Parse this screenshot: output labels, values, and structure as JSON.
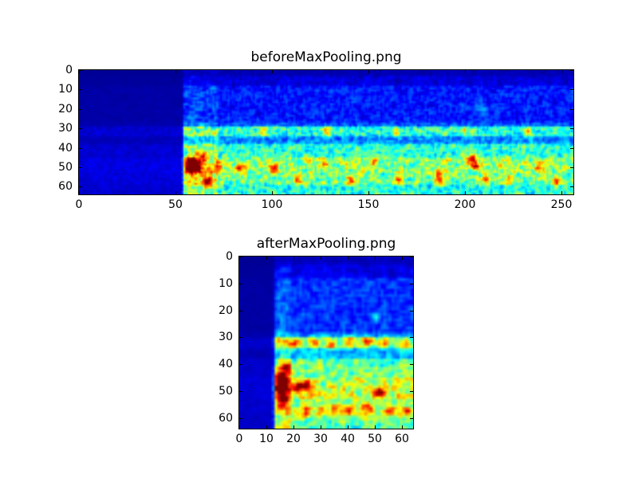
{
  "figure": {
    "background": "#ffffff",
    "kind": "matplotlib-style figure with two image subplots"
  },
  "colors": {
    "axes_frame": "#000000",
    "tick_color": "#000000",
    "text_color": "#000000",
    "colormap_low": "#000080",
    "colormap_mid": "#00ffff",
    "colormap_high": "#800000"
  },
  "chart_data": [
    {
      "type": "heatmap",
      "title": "beforeMaxPooling.png",
      "xlabel": "",
      "ylabel": "",
      "x_range": [
        0,
        256
      ],
      "y_range": [
        0,
        64
      ],
      "y_inverted": true,
      "x_ticks": [
        0,
        50,
        100,
        150,
        200,
        250
      ],
      "y_ticks": [
        0,
        10,
        20,
        30,
        40,
        50,
        60
      ],
      "colormap": "jet",
      "grid": false,
      "legend": "none",
      "data_cols": 256,
      "data_rows": 64,
      "seed": 20,
      "description": "Spectrogram-like activation map 256 wide by 64 tall. Columns 0-53 are near-silent dark navy. A speckled cyan-green band spans rows 29-33; strong activity rows 38-63 with hottest red-orange spots near columns 56-66 rows 44-52 and scattered orange specks along rows 45-58.",
      "silence": {
        "col_start": 0,
        "col_end": 54,
        "gain": 0.16
      },
      "col_boost": [
        {
          "col_start": 54,
          "col_end": 72,
          "gain": 1.25
        }
      ],
      "row_bands": [
        {
          "from": 0,
          "to": 3,
          "base": 0.05,
          "noise": 0.03
        },
        {
          "from": 3,
          "to": 8,
          "base": 0.09,
          "noise": 0.06
        },
        {
          "from": 8,
          "to": 27,
          "base": 0.15,
          "noise": 0.1
        },
        {
          "from": 27,
          "to": 29,
          "base": 0.2,
          "noise": 0.12
        },
        {
          "from": 29,
          "to": 34,
          "base": 0.42,
          "noise": 0.22
        },
        {
          "from": 34,
          "to": 38,
          "base": 0.26,
          "noise": 0.14
        },
        {
          "from": 38,
          "to": 45,
          "base": 0.42,
          "noise": 0.2
        },
        {
          "from": 45,
          "to": 53,
          "base": 0.52,
          "noise": 0.24
        },
        {
          "from": 53,
          "to": 59,
          "base": 0.48,
          "noise": 0.22
        },
        {
          "from": 59,
          "to": 64,
          "base": 0.4,
          "noise": 0.2
        }
      ],
      "hotspots": [
        {
          "x": 58,
          "y": 47,
          "r": 1.8,
          "amp": 0.55
        },
        {
          "x": 61,
          "y": 50,
          "r": 1.6,
          "amp": 0.6
        },
        {
          "x": 57,
          "y": 51,
          "r": 1.5,
          "amp": 0.45
        },
        {
          "x": 63,
          "y": 44,
          "r": 1.4,
          "amp": 0.4
        },
        {
          "x": 66,
          "y": 57,
          "r": 1.8,
          "amp": 0.4
        },
        {
          "x": 72,
          "y": 49,
          "r": 1.5,
          "amp": 0.35
        },
        {
          "x": 83,
          "y": 50,
          "r": 1.6,
          "amp": 0.35
        },
        {
          "x": 100,
          "y": 50,
          "r": 1.8,
          "amp": 0.32
        },
        {
          "x": 113,
          "y": 56,
          "r": 1.8,
          "amp": 0.35
        },
        {
          "x": 127,
          "y": 47,
          "r": 1.5,
          "amp": 0.3
        },
        {
          "x": 140,
          "y": 56,
          "r": 1.6,
          "amp": 0.32
        },
        {
          "x": 152,
          "y": 47,
          "r": 1.5,
          "amp": 0.3
        },
        {
          "x": 165,
          "y": 56,
          "r": 1.8,
          "amp": 0.35
        },
        {
          "x": 186,
          "y": 55,
          "r": 2.0,
          "amp": 0.42
        },
        {
          "x": 203,
          "y": 45,
          "r": 1.6,
          "amp": 0.5
        },
        {
          "x": 205,
          "y": 49,
          "r": 1.5,
          "amp": 0.42
        },
        {
          "x": 210,
          "y": 56,
          "r": 1.6,
          "amp": 0.3
        },
        {
          "x": 222,
          "y": 56,
          "r": 1.6,
          "amp": 0.32
        },
        {
          "x": 238,
          "y": 50,
          "r": 1.5,
          "amp": 0.3
        },
        {
          "x": 247,
          "y": 57,
          "r": 1.6,
          "amp": 0.35
        },
        {
          "x": 95,
          "y": 31,
          "r": 1.5,
          "amp": 0.3
        },
        {
          "x": 128,
          "y": 31,
          "r": 1.5,
          "amp": 0.28
        },
        {
          "x": 163,
          "y": 31,
          "r": 1.5,
          "amp": 0.3
        },
        {
          "x": 198,
          "y": 31,
          "r": 1.5,
          "amp": 0.28
        },
        {
          "x": 232,
          "y": 31,
          "r": 1.5,
          "amp": 0.28
        },
        {
          "x": 208,
          "y": 20,
          "r": 2.5,
          "amp": 0.12
        }
      ]
    },
    {
      "type": "heatmap",
      "title": "afterMaxPooling.png",
      "xlabel": "",
      "ylabel": "",
      "x_range": [
        0,
        64
      ],
      "y_range": [
        0,
        64
      ],
      "y_inverted": true,
      "x_ticks": [
        0,
        10,
        20,
        30,
        40,
        50,
        60
      ],
      "y_ticks": [
        0,
        10,
        20,
        30,
        40,
        50,
        60
      ],
      "colormap": "jet",
      "grid": false,
      "legend": "none",
      "data_cols": 64,
      "data_rows": 64,
      "seed": 77,
      "description": "Max-pooled map 64 by 64. Columns 0-12 near-silent dark navy. Bright speckled band rows 30-33; dense warm activity rows 38-63, hottest red cluster at columns 14-17 rows 42-52 plus orange specks along rows 47-58.",
      "silence": {
        "col_start": 0,
        "col_end": 13,
        "gain": 0.12
      },
      "col_boost": [
        {
          "col_start": 13,
          "col_end": 19,
          "gain": 1.3
        }
      ],
      "row_bands": [
        {
          "from": 0,
          "to": 3,
          "base": 0.06,
          "noise": 0.03
        },
        {
          "from": 3,
          "to": 8,
          "base": 0.1,
          "noise": 0.06
        },
        {
          "from": 8,
          "to": 28,
          "base": 0.17,
          "noise": 0.1
        },
        {
          "from": 28,
          "to": 30,
          "base": 0.24,
          "noise": 0.12
        },
        {
          "from": 30,
          "to": 34,
          "base": 0.52,
          "noise": 0.22
        },
        {
          "from": 34,
          "to": 38,
          "base": 0.3,
          "noise": 0.15
        },
        {
          "from": 38,
          "to": 45,
          "base": 0.48,
          "noise": 0.2
        },
        {
          "from": 45,
          "to": 53,
          "base": 0.58,
          "noise": 0.24
        },
        {
          "from": 53,
          "to": 59,
          "base": 0.52,
          "noise": 0.22
        },
        {
          "from": 59,
          "to": 64,
          "base": 0.45,
          "noise": 0.2
        }
      ],
      "hotspots": [
        {
          "x": 15,
          "y": 44,
          "r": 1.2,
          "amp": 0.5
        },
        {
          "x": 15,
          "y": 48,
          "r": 1.5,
          "amp": 0.62
        },
        {
          "x": 16,
          "y": 52,
          "r": 1.2,
          "amp": 0.45
        },
        {
          "x": 17,
          "y": 41,
          "r": 1.2,
          "amp": 0.4
        },
        {
          "x": 21,
          "y": 48,
          "r": 1.5,
          "amp": 0.45
        },
        {
          "x": 24,
          "y": 47,
          "r": 1.2,
          "amp": 0.4
        },
        {
          "x": 24,
          "y": 57,
          "r": 1.5,
          "amp": 0.4
        },
        {
          "x": 30,
          "y": 57,
          "r": 1.2,
          "amp": 0.35
        },
        {
          "x": 35,
          "y": 56,
          "r": 1.3,
          "amp": 0.35
        },
        {
          "x": 40,
          "y": 57,
          "r": 1.4,
          "amp": 0.35
        },
        {
          "x": 47,
          "y": 56,
          "r": 1.5,
          "amp": 0.45
        },
        {
          "x": 51,
          "y": 50,
          "r": 1.2,
          "amp": 0.55
        },
        {
          "x": 55,
          "y": 57,
          "r": 1.4,
          "amp": 0.38
        },
        {
          "x": 61,
          "y": 57,
          "r": 1.3,
          "amp": 0.4
        },
        {
          "x": 20,
          "y": 32,
          "r": 1.2,
          "amp": 0.35
        },
        {
          "x": 27,
          "y": 31,
          "r": 1.2,
          "amp": 0.3
        },
        {
          "x": 33,
          "y": 32,
          "r": 1.2,
          "amp": 0.3
        },
        {
          "x": 40,
          "y": 31,
          "r": 1.2,
          "amp": 0.32
        },
        {
          "x": 47,
          "y": 31,
          "r": 1.3,
          "amp": 0.35
        },
        {
          "x": 53,
          "y": 31,
          "r": 1.2,
          "amp": 0.3
        },
        {
          "x": 60,
          "y": 32,
          "r": 1.2,
          "amp": 0.32
        },
        {
          "x": 50,
          "y": 22,
          "r": 1.0,
          "amp": 0.25
        }
      ]
    }
  ]
}
